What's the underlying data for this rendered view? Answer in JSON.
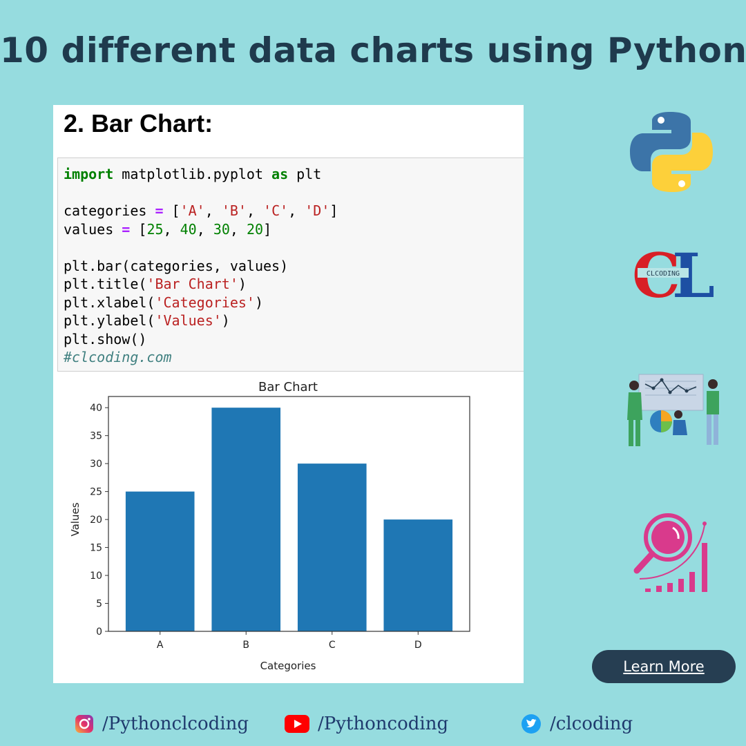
{
  "header": {
    "title": "10 different data charts using Python"
  },
  "card": {
    "heading": "2. Bar Chart:",
    "code": {
      "line1_kw": "import",
      "line1_mid": " matplotlib.pyplot ",
      "line1_kw2": "as",
      "line1_end": " plt",
      "cat_var": "categories ",
      "cat_op": "=",
      "cat_open": " [",
      "cat_a": "'A'",
      "cat_b": "'B'",
      "cat_c": "'C'",
      "cat_d": "'D'",
      "cat_close": "]",
      "sep": ", ",
      "val_var": "values ",
      "val_op": "=",
      "val_open": " [",
      "val_1": "25",
      "val_2": "40",
      "val_3": "30",
      "val_4": "20",
      "val_close": "]",
      "bar_call": "plt.bar(categories, values)",
      "title_pre": "plt.title(",
      "title_arg": "'Bar Chart'",
      "xlabel_pre": "plt.xlabel(",
      "xlabel_arg": "'Categories'",
      "ylabel_pre": "plt.ylabel(",
      "ylabel_arg": "'Values'",
      "close_paren": ")",
      "show_call": "plt.show()",
      "comment": "#clcoding.com"
    }
  },
  "chart_data": {
    "type": "bar",
    "title": "Bar Chart",
    "xlabel": "Categories",
    "ylabel": "Values",
    "categories": [
      "A",
      "B",
      "C",
      "D"
    ],
    "values": [
      25,
      40,
      30,
      20
    ],
    "ylim": [
      0,
      42
    ],
    "yticks": [
      "0",
      "5",
      "10",
      "15",
      "20",
      "25",
      "30",
      "35",
      "40"
    ],
    "bar_color": "#1f77b4",
    "grid": false
  },
  "icons": {
    "python": "python-logo-icon",
    "clcoding": "CLCODING",
    "team": "team-chart-illustration-icon",
    "analytics": "magnifier-growth-chart-icon"
  },
  "cta": {
    "label": "Learn More"
  },
  "socials": {
    "instagram": "/Pythonclcoding",
    "youtube": "/Pythoncoding",
    "twitter": "/clcoding"
  },
  "colors": {
    "background": "#96dcdf",
    "headline": "#1f3a4d",
    "button": "#263e52",
    "bar": "#1f77b4",
    "accent_pink": "#d93a8c"
  }
}
